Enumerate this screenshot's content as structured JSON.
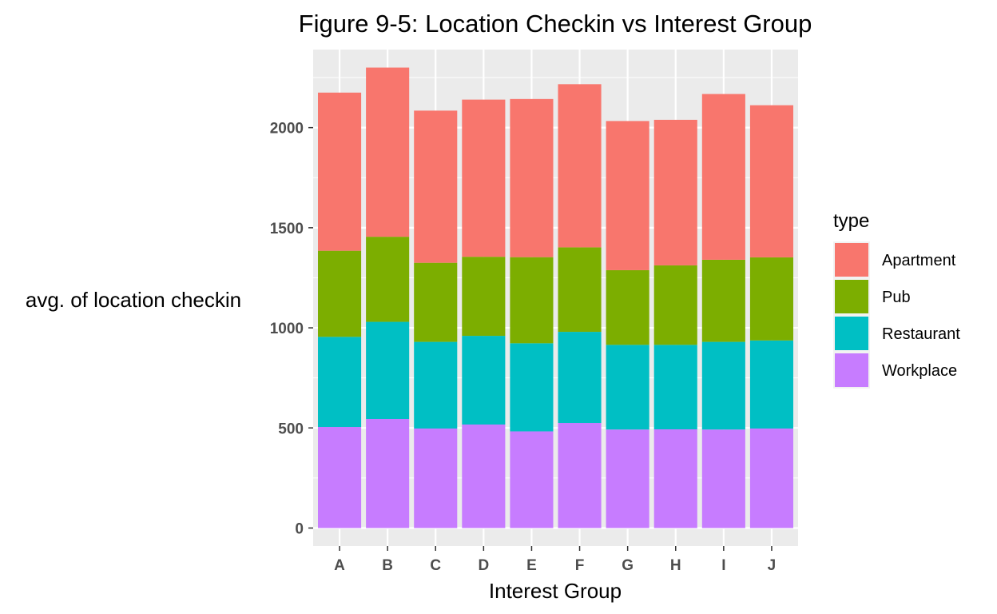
{
  "chart_data": {
    "type": "bar",
    "stacked": true,
    "title": "Figure 9-5: Location Checkin vs Interest Group",
    "xlabel": "Interest Group",
    "ylabel": "avg. of location checkin",
    "categories": [
      "A",
      "B",
      "C",
      "D",
      "E",
      "F",
      "G",
      "H",
      "I",
      "J"
    ],
    "ylim": [
      -90,
      2390
    ],
    "yticks": [
      0,
      500,
      1000,
      1500,
      2000
    ],
    "grid": true,
    "legend": {
      "title": "type",
      "position": "right"
    },
    "series": [
      {
        "name": "Workplace",
        "color": "#C77CFF",
        "values": [
          505,
          545,
          497,
          517,
          483,
          525,
          492,
          493,
          492,
          497
        ]
      },
      {
        "name": "Restaurant",
        "color": "#00BFC4",
        "values": [
          450,
          485,
          433,
          443,
          440,
          455,
          423,
          422,
          438,
          440
        ]
      },
      {
        "name": "Pub",
        "color": "#7CAE00",
        "values": [
          430,
          425,
          395,
          395,
          430,
          422,
          373,
          397,
          410,
          415
        ]
      },
      {
        "name": "Apartment",
        "color": "#F8766D",
        "values": [
          790,
          845,
          760,
          785,
          790,
          815,
          745,
          727,
          828,
          760
        ]
      }
    ],
    "legend_order": [
      "Apartment",
      "Pub",
      "Restaurant",
      "Workplace"
    ],
    "panel_background": "#EBEBEB",
    "grid_color": "#FFFFFF"
  }
}
